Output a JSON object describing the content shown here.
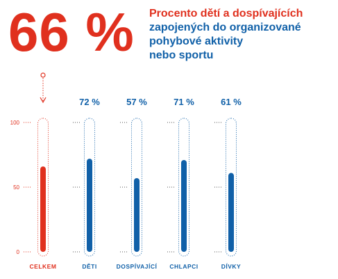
{
  "hero": {
    "value": "66 %",
    "title_lines": [
      "Procento dětí a dospívajících",
      "zapojených do organizované",
      "pohybové aktivity",
      "nebo sportu"
    ]
  },
  "colors": {
    "red": "#e0301e",
    "blue": "#1060a8",
    "tick": "#555555"
  },
  "chart_data": {
    "type": "bar",
    "title": "Procento dětí a dospívajících zapojených do organizované pohybové aktivity nebo sportu",
    "categories": [
      "CELKEM",
      "DĚTI",
      "DOSPÍVAJÍCÍ",
      "CHLAPCI",
      "DÍVKY"
    ],
    "values": [
      66,
      72,
      57,
      71,
      61
    ],
    "value_labels": [
      "66 %",
      "72 %",
      "57 %",
      "71 %",
      "61 %"
    ],
    "highlight": "CELKEM",
    "ylim": [
      0,
      100
    ],
    "yticks": [
      0,
      50,
      100
    ],
    "grid": false,
    "xlabel": "",
    "ylabel": ""
  }
}
